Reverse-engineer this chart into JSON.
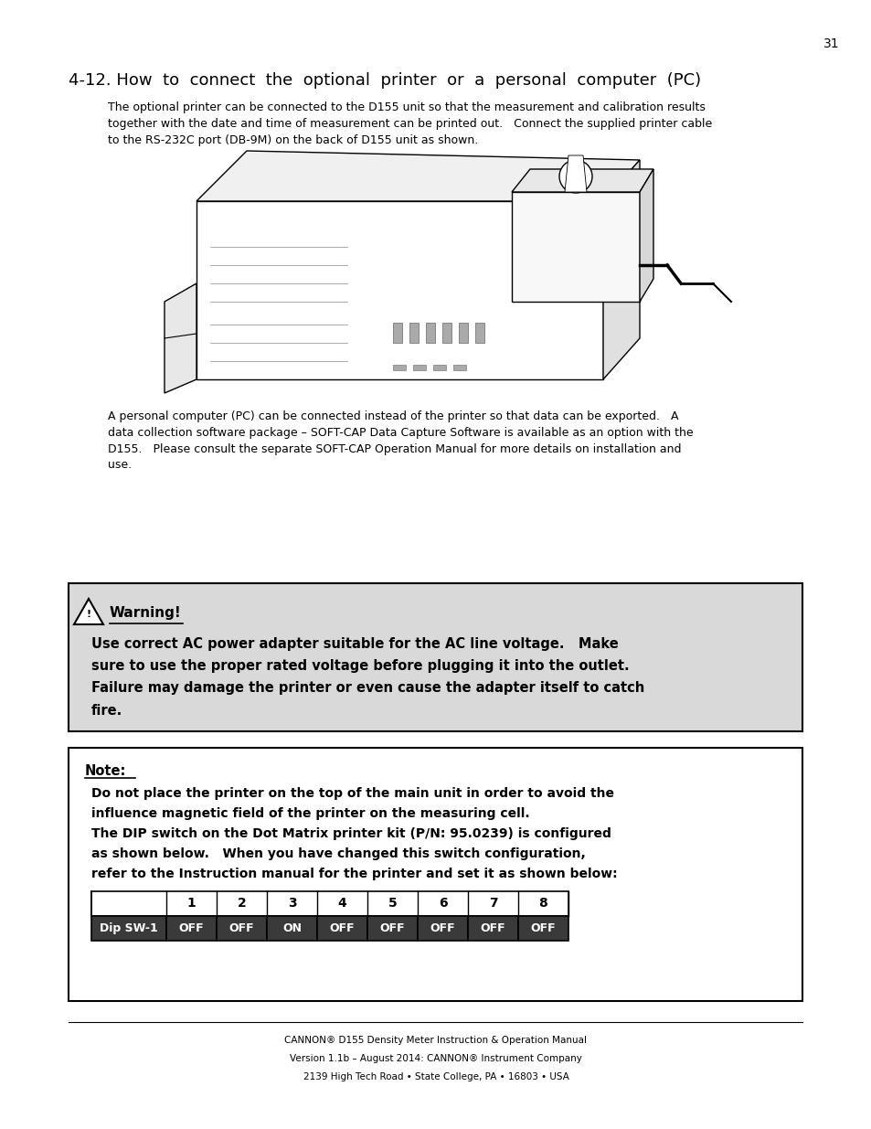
{
  "page_number": "31",
  "section_title": "4-12. How  to  connect  the  optional  printer  or  a  personal  computer  (PC)",
  "para1_lines": [
    "The optional printer can be connected to the D155 unit so that the measurement and calibration results",
    "together with the date and time of measurement can be printed out.   Connect the supplied printer cable",
    "to the RS-232C port (DB-9M) on the back of D155 unit as shown."
  ],
  "para2_lines": [
    "A personal computer (PC) can be connected instead of the printer so that data can be exported.   A",
    "data collection software package – SOFT-CAP Data Capture Software is available as an option with the",
    "D155.   Please consult the separate SOFT-CAP Operation Manual for more details on installation and",
    "use."
  ],
  "warning_title": "Warning!",
  "warning_body_lines": [
    "Use correct AC power adapter suitable for the AC line voltage.   Make",
    "sure to use the proper rated voltage before plugging it into the outlet.",
    "Failure may damage the printer or even cause the adapter itself to catch",
    "fire."
  ],
  "note_title": "Note:",
  "note_body_lines": [
    "Do not place the printer on the top of the main unit in order to avoid the",
    "influence magnetic field of the printer on the measuring cell.",
    "The DIP switch on the Dot Matrix printer kit (P/N: 95.0239) is configured",
    "as shown below.   When you have changed this switch configuration,",
    "refer to the Instruction manual for the printer and set it as shown below:"
  ],
  "table_headers": [
    "",
    "1",
    "2",
    "3",
    "4",
    "5",
    "6",
    "7",
    "8"
  ],
  "table_row_label": "Dip SW-1",
  "table_row_values": [
    "OFF",
    "OFF",
    "ON",
    "OFF",
    "OFF",
    "OFF",
    "OFF",
    "OFF"
  ],
  "footer_line1_plain": " D155 Density Meter Instruction & Operation Manual",
  "footer_line1_bold": "CANNON®",
  "footer_line2_plain": " Instrument Company",
  "footer_line2_bold": "CANNON®",
  "footer_line2_pre": "Version 1.1b – August 2014: ",
  "footer_line3": "2139 High Tech Road • State College, PA • 16803 • USA",
  "bg_color": "#ffffff",
  "warning_bg": "#d9d9d9",
  "note_bg": "#ffffff",
  "border_color": "#000000",
  "text_color": "#000000"
}
